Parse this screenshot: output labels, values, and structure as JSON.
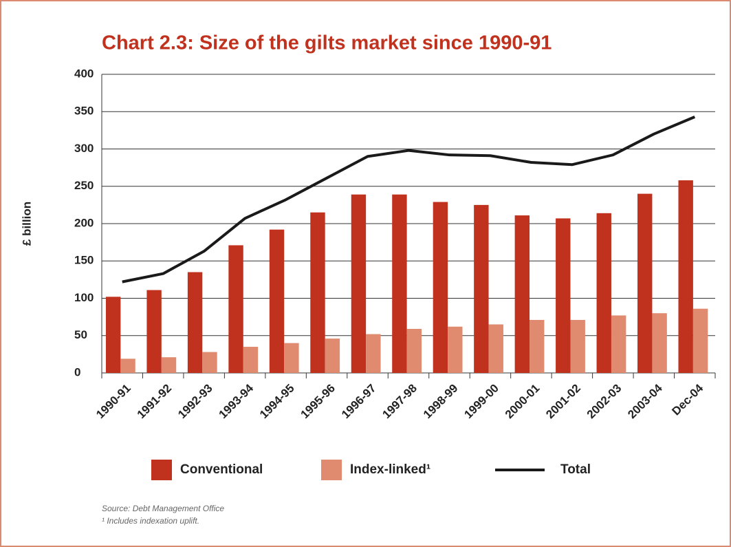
{
  "chart_data": {
    "type": "bar_line",
    "title": "Chart 2.3: Size of the gilts market since 1990-91",
    "y_label": "£ billion",
    "categories": [
      "1990-91",
      "1991-92",
      "1992-93",
      "1993-94",
      "1994-95",
      "1995-96",
      "1996-97",
      "1997-98",
      "1998-99",
      "1999-00",
      "2000-01",
      "2001-02",
      "2002-03",
      "2003-04",
      "Dec-04"
    ],
    "series": [
      {
        "name": "Conventional",
        "type": "bar",
        "color": "#c0321e",
        "values": [
          102,
          111,
          135,
          171,
          192,
          215,
          239,
          239,
          229,
          225,
          211,
          207,
          214,
          240,
          258
        ]
      },
      {
        "name": "Index-linked¹",
        "type": "bar",
        "color": "#e08b70",
        "values": [
          19,
          21,
          28,
          35,
          40,
          46,
          52,
          59,
          62,
          65,
          71,
          71,
          77,
          80,
          86
        ]
      },
      {
        "name": "Total",
        "type": "line",
        "color": "#1a1a1a",
        "values": [
          122,
          133,
          163,
          207,
          232,
          261,
          290,
          298,
          292,
          291,
          282,
          279,
          292,
          320,
          343
        ]
      }
    ],
    "ylim": [
      0,
      400
    ],
    "yticks": [
      0,
      50,
      100,
      150,
      200,
      250,
      300,
      350,
      400
    ],
    "grid": true,
    "source": "Source: Debt Management Office",
    "footnote": "¹ Includes indexation uplift."
  }
}
